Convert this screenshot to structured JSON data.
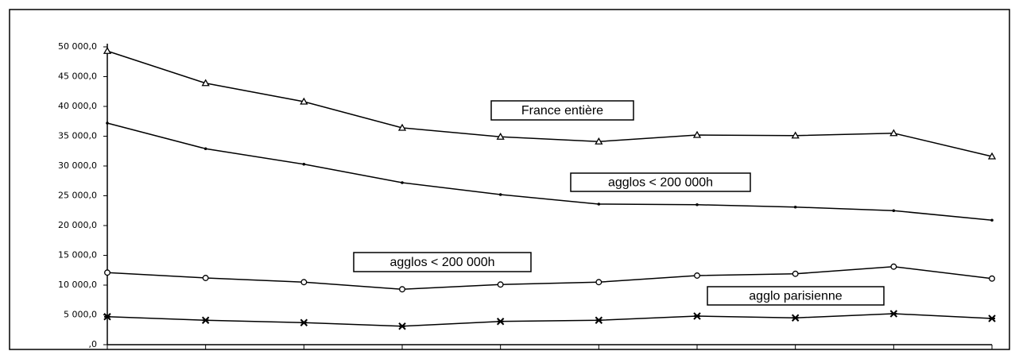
{
  "chart_data": {
    "type": "line",
    "categories": [
      null,
      null,
      null,
      null,
      null,
      null,
      null,
      null,
      null,
      null
    ],
    "series": [
      {
        "name": "France entière",
        "color": "#000000",
        "marker": "triangle",
        "values": [
          49300,
          43900,
          40800,
          36400,
          34900,
          34100,
          35200,
          35100,
          35500,
          31600
        ]
      },
      {
        "name": "agglos < 200 000h",
        "color": "#000000",
        "marker": "dot",
        "values": [
          37200,
          32900,
          30300,
          27200,
          25200,
          23600,
          23500,
          23100,
          22500,
          20900
        ]
      },
      {
        "name": "agglos < 200 000h",
        "color": "#000000",
        "marker": "circle",
        "values": [
          12100,
          11200,
          10500,
          9300,
          10100,
          10500,
          11600,
          11900,
          13100,
          11100
        ]
      },
      {
        "name": "agglo parisienne",
        "color": "#000000",
        "marker": "x",
        "values": [
          4700,
          4100,
          3700,
          3100,
          3900,
          4100,
          4800,
          4500,
          5200,
          4400
        ]
      }
    ],
    "ylim": [
      0,
      50000
    ],
    "yticks": [
      {
        "value": 0,
        "label": ",0"
      },
      {
        "value": 5000,
        "label": "5 000,0"
      },
      {
        "value": 10000,
        "label": "10 000,0"
      },
      {
        "value": 15000,
        "label": "15 000,0"
      },
      {
        "value": 20000,
        "label": "20 000,0"
      },
      {
        "value": 25000,
        "label": "25 000,0"
      },
      {
        "value": 30000,
        "label": "30 000,0"
      },
      {
        "value": 35000,
        "label": "35 000,0"
      },
      {
        "value": 40000,
        "label": "40 000,0"
      },
      {
        "value": 45000,
        "label": "45 000,0"
      },
      {
        "value": 50000,
        "label": "50 000,0"
      }
    ],
    "grid": false
  }
}
